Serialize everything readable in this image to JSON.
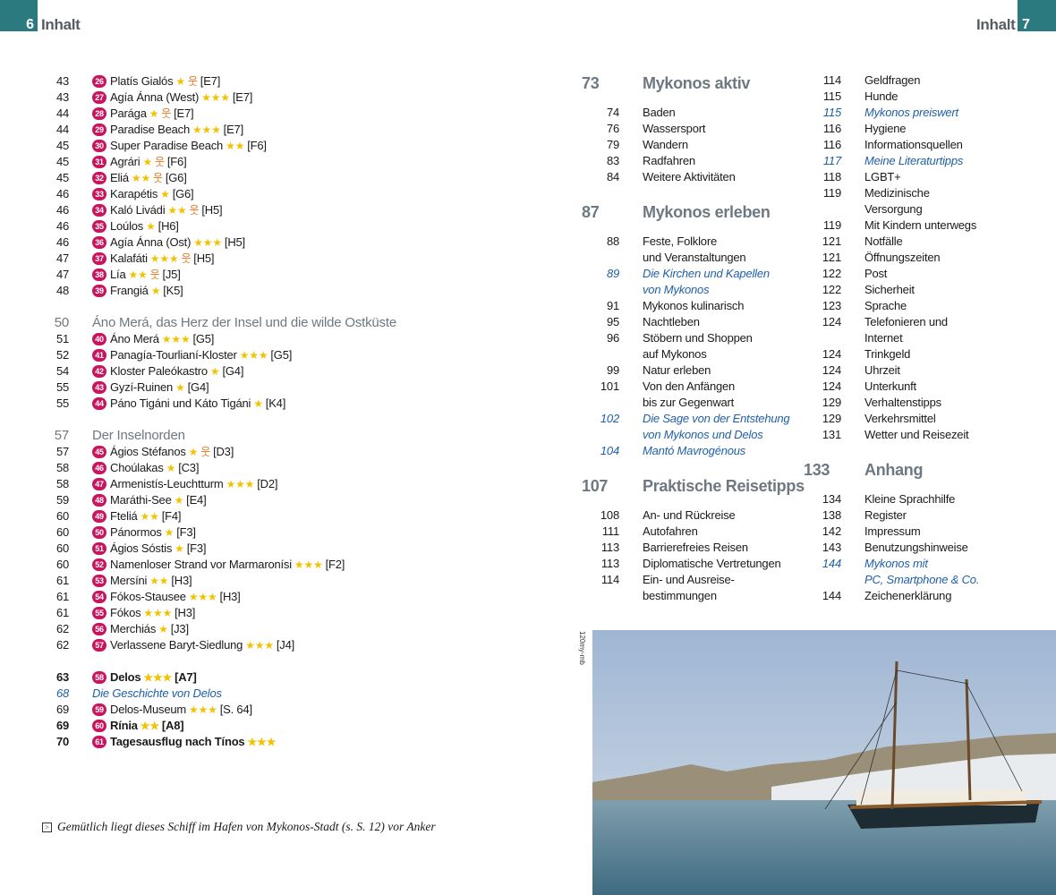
{
  "header": {
    "left_page": "6",
    "left_title": "Inhalt",
    "right_page": "7",
    "right_title": "Inhalt"
  },
  "colors": {
    "tab": "#2b7a80",
    "badge": "#c8155f",
    "star": "#f2c200",
    "family": "#e07a20",
    "link": "#1f5fa8",
    "heading": "#6d7880"
  },
  "left_groups": [
    {
      "entries": [
        {
          "page": "43",
          "num": "26",
          "name": "Platís Gialós",
          "stars": 1,
          "family": true,
          "grid": "[E7]"
        },
        {
          "page": "43",
          "num": "27",
          "name": "Agía Ánna (West)",
          "stars": 3,
          "grid": "[E7]"
        },
        {
          "page": "44",
          "num": "28",
          "name": "Parága",
          "stars": 1,
          "family": true,
          "grid": "[E7]"
        },
        {
          "page": "44",
          "num": "29",
          "name": "Paradise Beach",
          "stars": 3,
          "grid": "[E7]"
        },
        {
          "page": "45",
          "num": "30",
          "name": "Super Paradise Beach",
          "stars": 2,
          "grid": "[F6]"
        },
        {
          "page": "45",
          "num": "31",
          "name": "Agrári",
          "stars": 1,
          "family": true,
          "grid": "[F6]"
        },
        {
          "page": "45",
          "num": "32",
          "name": "Eliá",
          "stars": 2,
          "family": true,
          "grid": "[G6]"
        },
        {
          "page": "46",
          "num": "33",
          "name": "Karapétis",
          "stars": 1,
          "grid": "[G6]"
        },
        {
          "page": "46",
          "num": "34",
          "name": "Kaló Livádi",
          "stars": 2,
          "family": true,
          "grid": "[H5]"
        },
        {
          "page": "46",
          "num": "35",
          "name": "Loúlos",
          "stars": 1,
          "grid": "[H6]"
        },
        {
          "page": "46",
          "num": "36",
          "name": "Agía Ánna (Ost)",
          "stars": 3,
          "grid": "[H5]"
        },
        {
          "page": "47",
          "num": "37",
          "name": "Kalafáti",
          "stars": 3,
          "family": true,
          "grid": "[H5]"
        },
        {
          "page": "47",
          "num": "38",
          "name": "Lía",
          "stars": 2,
          "family": true,
          "grid": "[J5]"
        },
        {
          "page": "48",
          "num": "39",
          "name": "Frangiá",
          "stars": 1,
          "grid": "[K5]"
        }
      ]
    },
    {
      "heading": {
        "page": "50",
        "title": "Áno Merá, das Herz der Insel und die wilde Ostküste"
      },
      "entries": [
        {
          "page": "51",
          "num": "40",
          "name": "Áno Merá",
          "stars": 3,
          "grid": "[G5]"
        },
        {
          "page": "52",
          "num": "41",
          "name": "Panagía-Tourlianí-Kloster",
          "stars": 3,
          "grid": "[G5]"
        },
        {
          "page": "54",
          "num": "42",
          "name": "Kloster Paleókastro",
          "stars": 1,
          "grid": "[G4]"
        },
        {
          "page": "55",
          "num": "43",
          "name": "Gyzí-Ruinen",
          "stars": 1,
          "grid": "[G4]"
        },
        {
          "page": "55",
          "num": "44",
          "name": "Páno Tigáni und Káto Tigáni",
          "stars": 1,
          "grid": "[K4]"
        }
      ]
    },
    {
      "heading": {
        "page": "57",
        "title": "Der Inselnorden"
      },
      "entries": [
        {
          "page": "57",
          "num": "45",
          "name": "Ágios Stéfanos",
          "stars": 1,
          "family": true,
          "grid": "[D3]"
        },
        {
          "page": "58",
          "num": "46",
          "name": "Choúlakas",
          "stars": 1,
          "grid": "[C3]"
        },
        {
          "page": "58",
          "num": "47",
          "name": "Armenistís-Leuchtturm",
          "stars": 3,
          "grid": "[D2]"
        },
        {
          "page": "59",
          "num": "48",
          "name": "Maráthi-See",
          "stars": 1,
          "grid": "[E4]"
        },
        {
          "page": "60",
          "num": "49",
          "name": "Fteliá",
          "stars": 2,
          "grid": "[F4]"
        },
        {
          "page": "60",
          "num": "50",
          "name": "Pánormos",
          "stars": 1,
          "grid": "[F3]"
        },
        {
          "page": "60",
          "num": "51",
          "name": "Ágios Sóstis",
          "stars": 1,
          "grid": "[F3]"
        },
        {
          "page": "60",
          "num": "52",
          "name": "Namenloser Strand vor Marmaronísi",
          "stars": 3,
          "grid": "[F2]"
        },
        {
          "page": "61",
          "num": "53",
          "name": "Mersíni",
          "stars": 2,
          "grid": "[H3]"
        },
        {
          "page": "61",
          "num": "54",
          "name": "Fókos-Stausee",
          "stars": 3,
          "grid": "[H3]"
        },
        {
          "page": "61",
          "num": "55",
          "name": "Fókos",
          "stars": 3,
          "grid": "[H3]"
        },
        {
          "page": "62",
          "num": "56",
          "name": "Merchiás",
          "stars": 1,
          "grid": "[J3]"
        },
        {
          "page": "62",
          "num": "57",
          "name": "Verlassene Baryt-Siedlung",
          "stars": 3,
          "grid": "[J4]"
        }
      ]
    },
    {
      "entries": [
        {
          "page": "63",
          "num": "58",
          "name": "Delos",
          "stars": 3,
          "grid": "[A7]",
          "bold": true
        },
        {
          "page": "68",
          "name": "Die Geschichte von Delos",
          "italic": true
        },
        {
          "page": "69",
          "num": "59",
          "name": "Delos-Museum",
          "stars": 3,
          "grid": "[S. 64]"
        },
        {
          "page": "69",
          "num": "60",
          "name": "Rínia",
          "stars": 2,
          "grid": "[A8]",
          "bold": true
        },
        {
          "page": "70",
          "num": "61",
          "name": "Tagesausflug nach Tínos",
          "stars": 3,
          "bold": true
        }
      ]
    }
  ],
  "right_col1": [
    {
      "section": true,
      "page": "73",
      "text": "Mykonos aktiv"
    },
    {
      "page": "74",
      "text": "Baden"
    },
    {
      "page": "76",
      "text": "Wassersport"
    },
    {
      "page": "79",
      "text": "Wandern"
    },
    {
      "page": "83",
      "text": "Radfahren"
    },
    {
      "page": "84",
      "text": "Weitere Aktivitäten"
    },
    {
      "section": true,
      "page": "87",
      "text": "Mykonos erleben"
    },
    {
      "page": "88",
      "text": "Feste, Folklore\nund Veranstaltungen"
    },
    {
      "page": "89",
      "text": "Die Kirchen und Kapellen\nvon Mykonos",
      "italic": true
    },
    {
      "page": "91",
      "text": "Mykonos kulinarisch"
    },
    {
      "page": "95",
      "text": "Nachtleben"
    },
    {
      "page": "96",
      "text": "Stöbern und Shoppen\nauf Mykonos"
    },
    {
      "page": "99",
      "text": "Natur erleben"
    },
    {
      "page": "101",
      "text": "Von den Anfängen\nbis zur Gegenwart"
    },
    {
      "page": "102",
      "text": "Die Sage von der Entstehung\nvon Mykonos und Delos",
      "italic": true
    },
    {
      "page": "104",
      "text": "Mantó Mavrogénous",
      "italic": true
    },
    {
      "section": true,
      "page": "107",
      "text": "Praktische Reisetipps"
    },
    {
      "page": "108",
      "text": "An- und Rückreise"
    },
    {
      "page": "111",
      "text": "Autofahren"
    },
    {
      "page": "113",
      "text": "Barrierefreies Reisen"
    },
    {
      "page": "113",
      "text": "Diplomatische Vertretungen"
    },
    {
      "page": "114",
      "text": "Ein- und Ausreise-\nbestimmungen"
    }
  ],
  "right_col2": [
    {
      "page": "114",
      "text": "Geldfragen"
    },
    {
      "page": "115",
      "text": "Hunde"
    },
    {
      "page": "115",
      "text": "Mykonos preiswert",
      "italic": true
    },
    {
      "page": "116",
      "text": "Hygiene"
    },
    {
      "page": "116",
      "text": "Informationsquellen"
    },
    {
      "page": "117",
      "text": "Meine Literaturtipps",
      "italic": true
    },
    {
      "page": "118",
      "text": "LGBT+"
    },
    {
      "page": "119",
      "text": "Medizinische\nVersorgung"
    },
    {
      "page": "119",
      "text": "Mit Kindern unterwegs"
    },
    {
      "page": "121",
      "text": "Notfälle"
    },
    {
      "page": "121",
      "text": "Öffnungszeiten"
    },
    {
      "page": "122",
      "text": "Post"
    },
    {
      "page": "122",
      "text": "Sicherheit"
    },
    {
      "page": "123",
      "text": "Sprache"
    },
    {
      "page": "124",
      "text": "Telefonieren und\nInternet"
    },
    {
      "page": "124",
      "text": "Trinkgeld"
    },
    {
      "page": "124",
      "text": "Uhrzeit"
    },
    {
      "page": "124",
      "text": "Unterkunft"
    },
    {
      "page": "129",
      "text": "Verhaltenstipps"
    },
    {
      "page": "129",
      "text": "Verkehrsmittel"
    },
    {
      "page": "131",
      "text": "Wetter und Reisezeit"
    },
    {
      "section": true,
      "page": "133",
      "text": "Anhang"
    },
    {
      "page": "134",
      "text": "Kleine Sprachhilfe"
    },
    {
      "page": "138",
      "text": "Register"
    },
    {
      "page": "142",
      "text": "Impressum"
    },
    {
      "page": "143",
      "text": "Benutzungshinweise"
    },
    {
      "page": "144",
      "text": "Mykonos mit\nPC, Smartphone & Co.",
      "italic": true
    },
    {
      "page": "144",
      "text": "Zeichenerklärung"
    }
  ],
  "caption": {
    "icon": "arrow-box-icon",
    "arrow": ">",
    "text": "Gemütlich liegt dieses Schiff im Hafen von Mykonos-Stadt (s. S. 12) vor Anker"
  },
  "photo": {
    "credit": "120my-mb"
  }
}
